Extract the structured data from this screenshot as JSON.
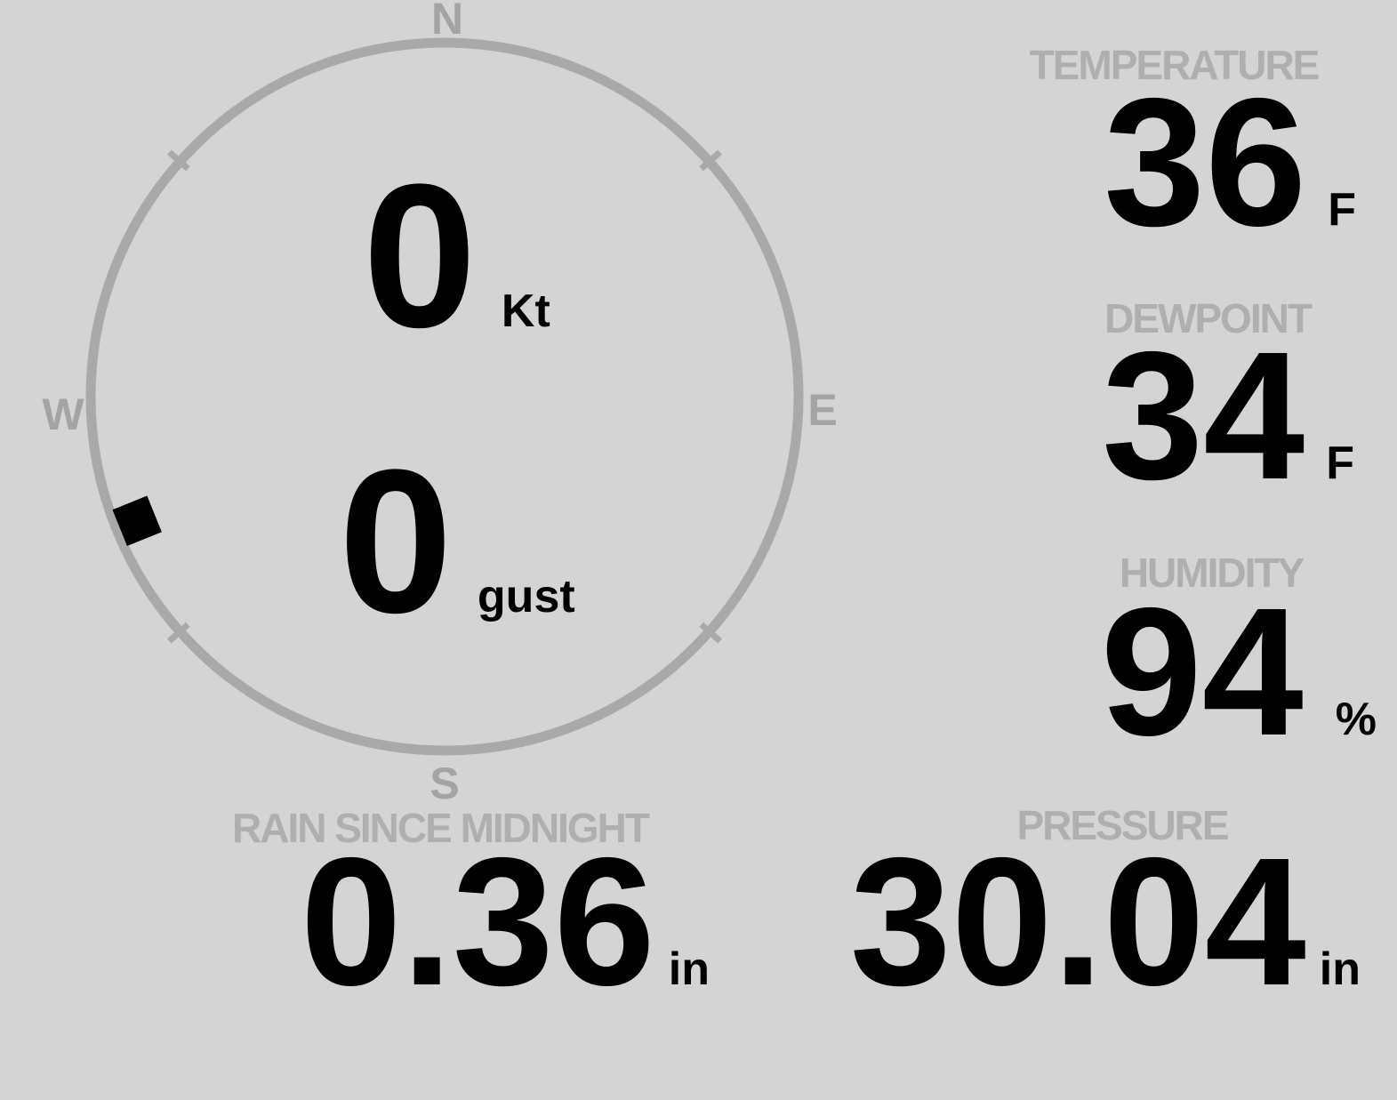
{
  "compass": {
    "cardinals": {
      "north": "N",
      "east": "E",
      "south": "S",
      "west": "W"
    },
    "wind_speed": {
      "value": "0",
      "unit": "Kt"
    },
    "wind_gust": {
      "value": "0",
      "unit": "gust"
    },
    "wind_direction_deg": 248
  },
  "metrics": {
    "temperature": {
      "label": "TEMPERATURE",
      "value": "36",
      "unit": "F"
    },
    "dewpoint": {
      "label": "DEWPOINT",
      "value": "34",
      "unit": "F"
    },
    "humidity": {
      "label": "HUMIDITY",
      "value": "94",
      "unit": "%"
    },
    "rain_since_midnight": {
      "label": "RAIN SINCE MIDNIGHT",
      "value": "0.36",
      "unit": "in"
    },
    "pressure": {
      "label": "PRESSURE",
      "value": "30.04",
      "unit": "in"
    }
  },
  "colors": {
    "background": "#d4d4d4",
    "ring": "#a9a9a9",
    "cardinal": "#a4a4a4",
    "label": "#afafaf",
    "value": "#000000",
    "marker": "#000000"
  }
}
